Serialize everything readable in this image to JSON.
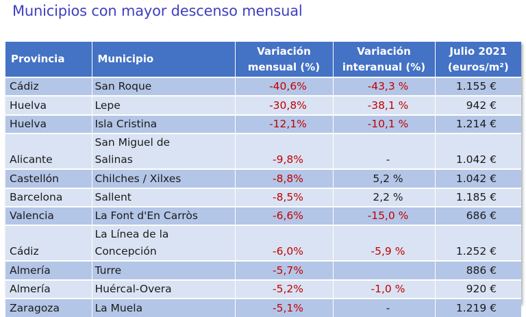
{
  "title": "Municipios con mayor descenso mensual",
  "table": {
    "headers": [
      [
        "Provincia"
      ],
      [
        "Municipio"
      ],
      [
        "Variación",
        "mensual (%)"
      ],
      [
        "Variación",
        "interanual (%)"
      ],
      [
        "Julio 2021",
        "(euros/m²)"
      ]
    ],
    "rows": [
      {
        "provincia": "Cádiz",
        "municipio": [
          "San Roque"
        ],
        "mensual": "-40,6%",
        "interanual": "-43,3 %",
        "precio": "1.155 €"
      },
      {
        "provincia": "Huelva",
        "municipio": [
          "Lepe"
        ],
        "mensual": "-30,8%",
        "interanual": "-38,1 %",
        "precio": "942 €"
      },
      {
        "provincia": "Huelva",
        "municipio": [
          "Isla Cristina"
        ],
        "mensual": "-12,1%",
        "interanual": "-10,1 %",
        "precio": "1.214 €"
      },
      {
        "provincia": "Alicante",
        "municipio": [
          "San Miguel de",
          "Salinas"
        ],
        "mensual": "-9,8%",
        "interanual": "-",
        "precio": "1.042 €"
      },
      {
        "provincia": "Castellón",
        "municipio": [
          "Chilches / Xilxes"
        ],
        "mensual": "-8,8%",
        "interanual": "5,2 %",
        "precio": "1.042 €"
      },
      {
        "provincia": "Barcelona",
        "municipio": [
          "Sallent"
        ],
        "mensual": "-8,5%",
        "interanual": "2,2 %",
        "precio": "1.185 €"
      },
      {
        "provincia": "Valencia",
        "municipio": [
          "La Font d'En Carròs"
        ],
        "mensual": "-6,6%",
        "interanual": "-15,0 %",
        "precio": "686 €"
      },
      {
        "provincia": "Cádiz",
        "municipio": [
          "La Línea de la",
          "Concepción"
        ],
        "mensual": "-6,0%",
        "interanual": "-5,9 %",
        "precio": "1.252 €"
      },
      {
        "provincia": "Almería",
        "municipio": [
          "Turre"
        ],
        "mensual": "-5,7%",
        "interanual": "",
        "precio": "886 €"
      },
      {
        "provincia": "Almería",
        "municipio": [
          "Huércal-Overa"
        ],
        "mensual": "-5,2%",
        "interanual": "-1,0 %",
        "precio": "920 €"
      },
      {
        "provincia": "Zaragoza",
        "municipio": [
          "La Muela"
        ],
        "mensual": "-5,1%",
        "interanual": "-",
        "precio": "1.219 €"
      }
    ]
  },
  "colors": {
    "title": "#3f3fbf",
    "header_bg": "#4472c4",
    "row_dark": "#b4c6e7",
    "row_light": "#dae3f3",
    "negative": "#c00000"
  }
}
